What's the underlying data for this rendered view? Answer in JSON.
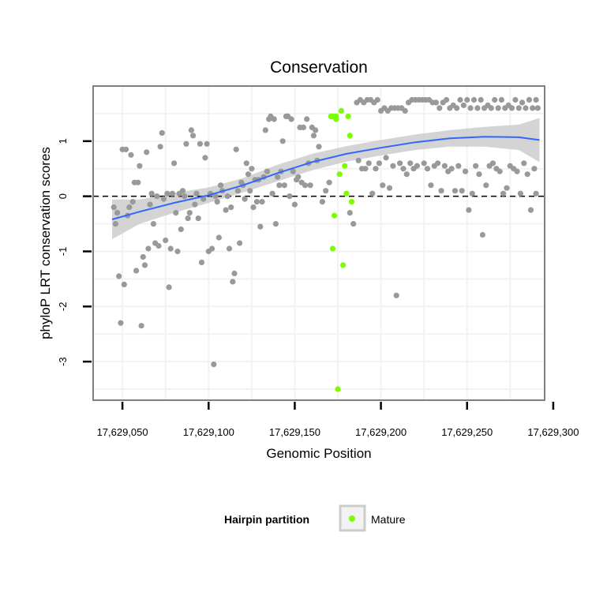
{
  "chart_data": {
    "type": "scatter",
    "title": "Conservation",
    "xlabel": "Genomic Position",
    "ylabel": "phyloP LRT conservation scores",
    "xlim": [
      17629033,
      17629295
    ],
    "ylim": [
      -3.7,
      2.0
    ],
    "x_ticks": [
      {
        "value": 17629050,
        "label": "17,629,050"
      },
      {
        "value": 17629100,
        "label": "17,629,100"
      },
      {
        "value": 17629150,
        "label": "17,629,150"
      },
      {
        "value": 17629200,
        "label": "17,629,200"
      },
      {
        "value": 17629250,
        "label": "17,629,250"
      },
      {
        "value": 17629300,
        "label": "17,629,300"
      }
    ],
    "y_ticks": [
      {
        "value": -3,
        "label": "-3"
      },
      {
        "value": -2,
        "label": "-2"
      },
      {
        "value": -1,
        "label": "-1"
      },
      {
        "value": 0,
        "label": "0"
      },
      {
        "value": 1,
        "label": "1"
      }
    ],
    "reference_line_y": 0,
    "grid": true,
    "legend": {
      "title": "Hairpin partition",
      "position": "bottom",
      "entries": [
        {
          "label": "Mature",
          "color": "#7cfc00"
        }
      ]
    },
    "colors": {
      "other": "#999999",
      "mature": "#7cfc00",
      "smooth": "#3366ff",
      "band": "#cccccc"
    },
    "series": [
      {
        "name": "",
        "color": "#999999",
        "points": [
          [
            17629045,
            -0.2
          ],
          [
            17629046,
            -0.5
          ],
          [
            17629047,
            -0.3
          ],
          [
            17629048,
            -1.45
          ],
          [
            17629049,
            -2.3
          ],
          [
            17629050,
            0.85
          ],
          [
            17629051,
            -1.6
          ],
          [
            17629052,
            0.85
          ],
          [
            17629053,
            -0.35
          ],
          [
            17629054,
            -0.2
          ],
          [
            17629055,
            0.75
          ],
          [
            17629056,
            -0.1
          ],
          [
            17629057,
            0.25
          ],
          [
            17629058,
            -1.35
          ],
          [
            17629059,
            0.25
          ],
          [
            17629060,
            0.55
          ],
          [
            17629061,
            -2.35
          ],
          [
            17629062,
            -1.1
          ],
          [
            17629063,
            -1.25
          ],
          [
            17629064,
            0.8
          ],
          [
            17629065,
            -0.95
          ],
          [
            17629066,
            -0.15
          ],
          [
            17629067,
            0.05
          ],
          [
            17629068,
            -0.5
          ],
          [
            17629069,
            -0.85
          ],
          [
            17629070,
            0.0
          ],
          [
            17629071,
            -0.9
          ],
          [
            17629072,
            0.9
          ],
          [
            17629073,
            1.15
          ],
          [
            17629074,
            -0.05
          ],
          [
            17629075,
            -0.8
          ],
          [
            17629076,
            0.05
          ],
          [
            17629077,
            -1.65
          ],
          [
            17629078,
            -0.95
          ],
          [
            17629079,
            0.05
          ],
          [
            17629080,
            0.6
          ],
          [
            17629081,
            -0.3
          ],
          [
            17629082,
            -1.0
          ],
          [
            17629083,
            0.05
          ],
          [
            17629084,
            -0.6
          ],
          [
            17629085,
            0.1
          ],
          [
            17629086,
            0.0
          ],
          [
            17629087,
            0.95
          ],
          [
            17629088,
            -0.4
          ],
          [
            17629089,
            -0.3
          ],
          [
            17629090,
            1.2
          ],
          [
            17629091,
            1.1
          ],
          [
            17629092,
            -0.15
          ],
          [
            17629093,
            0.05
          ],
          [
            17629094,
            -0.4
          ],
          [
            17629095,
            0.95
          ],
          [
            17629096,
            -1.2
          ],
          [
            17629097,
            -0.05
          ],
          [
            17629098,
            0.7
          ],
          [
            17629099,
            0.95
          ],
          [
            17629100,
            -1.0
          ],
          [
            17629101,
            0.05
          ],
          [
            17629102,
            -0.95
          ],
          [
            17629103,
            -3.05
          ],
          [
            17629104,
            0.0
          ],
          [
            17629105,
            -0.1
          ],
          [
            17629106,
            -0.75
          ],
          [
            17629107,
            0.2
          ],
          [
            17629108,
            0.1
          ],
          [
            17629110,
            -0.25
          ],
          [
            17629111,
            0.0
          ],
          [
            17629112,
            -0.95
          ],
          [
            17629113,
            -0.2
          ],
          [
            17629114,
            -1.55
          ],
          [
            17629115,
            -1.4
          ],
          [
            17629116,
            0.85
          ],
          [
            17629117,
            0.1
          ],
          [
            17629118,
            -0.85
          ],
          [
            17629119,
            0.25
          ],
          [
            17629120,
            0.2
          ],
          [
            17629121,
            -0.05
          ],
          [
            17629122,
            0.6
          ],
          [
            17629123,
            0.4
          ],
          [
            17629124,
            0.1
          ],
          [
            17629125,
            0.5
          ],
          [
            17629126,
            -0.2
          ],
          [
            17629127,
            0.3
          ],
          [
            17629128,
            -0.1
          ],
          [
            17629129,
            0.3
          ],
          [
            17629130,
            -0.55
          ],
          [
            17629131,
            -0.1
          ],
          [
            17629132,
            0.35
          ],
          [
            17629133,
            1.2
          ],
          [
            17629134,
            0.45
          ],
          [
            17629135,
            1.4
          ],
          [
            17629136,
            1.45
          ],
          [
            17629137,
            0.05
          ],
          [
            17629138,
            1.4
          ],
          [
            17629139,
            -0.5
          ],
          [
            17629140,
            0.35
          ],
          [
            17629141,
            0.2
          ],
          [
            17629142,
            0.45
          ],
          [
            17629143,
            1.0
          ],
          [
            17629144,
            0.2
          ],
          [
            17629145,
            1.45
          ],
          [
            17629146,
            1.45
          ],
          [
            17629147,
            0.0
          ],
          [
            17629148,
            1.4
          ],
          [
            17629149,
            0.45
          ],
          [
            17629150,
            -0.15
          ],
          [
            17629151,
            0.3
          ],
          [
            17629152,
            0.35
          ],
          [
            17629153,
            1.25
          ],
          [
            17629154,
            0.25
          ],
          [
            17629155,
            1.25
          ],
          [
            17629156,
            0.2
          ],
          [
            17629157,
            1.4
          ],
          [
            17629158,
            0.6
          ],
          [
            17629159,
            0.2
          ],
          [
            17629160,
            1.25
          ],
          [
            17629161,
            1.1
          ],
          [
            17629162,
            1.2
          ],
          [
            17629163,
            0.65
          ],
          [
            17629164,
            0.9
          ],
          [
            17629166,
            -0.1
          ],
          [
            17629168,
            0.1
          ],
          [
            17629170,
            0.25
          ],
          [
            17629182,
            -0.3
          ],
          [
            17629184,
            -0.5
          ],
          [
            17629186,
            1.7
          ],
          [
            17629187,
            0.65
          ],
          [
            17629188,
            1.75
          ],
          [
            17629189,
            0.5
          ],
          [
            17629190,
            1.7
          ],
          [
            17629191,
            0.5
          ],
          [
            17629192,
            1.75
          ],
          [
            17629193,
            0.6
          ],
          [
            17629194,
            1.75
          ],
          [
            17629195,
            0.05
          ],
          [
            17629196,
            1.7
          ],
          [
            17629197,
            0.5
          ],
          [
            17629198,
            1.75
          ],
          [
            17629199,
            0.6
          ],
          [
            17629200,
            1.55
          ],
          [
            17629201,
            0.2
          ],
          [
            17629202,
            1.6
          ],
          [
            17629203,
            0.7
          ],
          [
            17629204,
            1.55
          ],
          [
            17629205,
            0.15
          ],
          [
            17629206,
            1.6
          ],
          [
            17629207,
            0.55
          ],
          [
            17629208,
            1.6
          ],
          [
            17629209,
            -1.8
          ],
          [
            17629210,
            1.6
          ],
          [
            17629211,
            0.6
          ],
          [
            17629212,
            1.6
          ],
          [
            17629213,
            0.5
          ],
          [
            17629214,
            1.55
          ],
          [
            17629215,
            0.4
          ],
          [
            17629216,
            1.7
          ],
          [
            17629217,
            0.6
          ],
          [
            17629218,
            1.75
          ],
          [
            17629219,
            0.5
          ],
          [
            17629220,
            1.75
          ],
          [
            17629221,
            0.55
          ],
          [
            17629222,
            1.75
          ],
          [
            17629224,
            1.75
          ],
          [
            17629226,
            1.75
          ],
          [
            17629228,
            1.75
          ],
          [
            17629230,
            1.7
          ],
          [
            17629232,
            1.7
          ],
          [
            17629234,
            1.6
          ],
          [
            17629236,
            1.7
          ],
          [
            17629238,
            1.75
          ],
          [
            17629240,
            1.6
          ],
          [
            17629242,
            1.65
          ],
          [
            17629244,
            1.6
          ],
          [
            17629246,
            1.75
          ],
          [
            17629248,
            1.65
          ],
          [
            17629250,
            1.75
          ],
          [
            17629252,
            1.6
          ],
          [
            17629254,
            1.75
          ],
          [
            17629256,
            1.6
          ],
          [
            17629258,
            1.75
          ],
          [
            17629260,
            1.6
          ],
          [
            17629262,
            1.65
          ],
          [
            17629264,
            1.6
          ],
          [
            17629266,
            1.75
          ],
          [
            17629268,
            1.6
          ],
          [
            17629270,
            1.75
          ],
          [
            17629272,
            1.6
          ],
          [
            17629274,
            1.65
          ],
          [
            17629276,
            1.6
          ],
          [
            17629278,
            1.75
          ],
          [
            17629280,
            1.6
          ],
          [
            17629282,
            1.7
          ],
          [
            17629284,
            1.6
          ],
          [
            17629286,
            1.75
          ],
          [
            17629288,
            1.6
          ],
          [
            17629290,
            1.75
          ],
          [
            17629291,
            1.6
          ],
          [
            17629225,
            0.6
          ],
          [
            17629227,
            0.5
          ],
          [
            17629229,
            0.2
          ],
          [
            17629231,
            0.55
          ],
          [
            17629233,
            0.6
          ],
          [
            17629235,
            0.1
          ],
          [
            17629237,
            0.55
          ],
          [
            17629239,
            0.45
          ],
          [
            17629241,
            0.5
          ],
          [
            17629243,
            0.1
          ],
          [
            17629245,
            0.55
          ],
          [
            17629247,
            0.1
          ],
          [
            17629249,
            0.45
          ],
          [
            17629251,
            -0.25
          ],
          [
            17629253,
            0.05
          ],
          [
            17629255,
            0.55
          ],
          [
            17629257,
            0.4
          ],
          [
            17629259,
            -0.7
          ],
          [
            17629261,
            0.2
          ],
          [
            17629263,
            0.55
          ],
          [
            17629265,
            0.6
          ],
          [
            17629267,
            0.5
          ],
          [
            17629269,
            0.45
          ],
          [
            17629271,
            0.05
          ],
          [
            17629273,
            0.15
          ],
          [
            17629275,
            0.55
          ],
          [
            17629277,
            0.5
          ],
          [
            17629279,
            0.45
          ],
          [
            17629281,
            0.05
          ],
          [
            17629283,
            0.6
          ],
          [
            17629285,
            0.4
          ],
          [
            17629287,
            -0.25
          ],
          [
            17629289,
            0.5
          ],
          [
            17629290,
            0.05
          ]
        ]
      },
      {
        "name": "Mature",
        "color": "#7cfc00",
        "points": [
          [
            17629171,
            1.45
          ],
          [
            17629172,
            1.45
          ],
          [
            17629173,
            -0.35
          ],
          [
            17629174,
            1.45
          ],
          [
            17629175,
            -3.5
          ],
          [
            17629176,
            0.4
          ],
          [
            17629177,
            1.55
          ],
          [
            17629178,
            -1.25
          ],
          [
            17629179,
            0.55
          ],
          [
            17629180,
            0.05
          ],
          [
            17629181,
            1.45
          ],
          [
            17629182,
            1.1
          ],
          [
            17629183,
            -0.1
          ],
          [
            17629172,
            -0.95
          ],
          [
            17629174,
            1.4
          ]
        ]
      }
    ],
    "smooth": {
      "x": [
        17629044,
        17629060,
        17629080,
        17629100,
        17629120,
        17629140,
        17629160,
        17629180,
        17629200,
        17629220,
        17629240,
        17629260,
        17629280,
        17629292
      ],
      "y": [
        -0.42,
        -0.28,
        -0.12,
        0.02,
        0.2,
        0.42,
        0.62,
        0.77,
        0.88,
        0.98,
        1.05,
        1.08,
        1.07,
        1.02
      ],
      "lower": [
        -0.78,
        -0.5,
        -0.3,
        -0.12,
        0.07,
        0.27,
        0.47,
        0.63,
        0.74,
        0.84,
        0.9,
        0.9,
        0.84,
        0.62
      ],
      "upper": [
        -0.06,
        -0.06,
        0.06,
        0.16,
        0.33,
        0.57,
        0.77,
        0.91,
        1.02,
        1.12,
        1.2,
        1.26,
        1.3,
        1.42
      ]
    }
  }
}
